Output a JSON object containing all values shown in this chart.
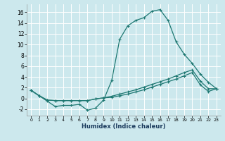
{
  "xlabel": "Humidex (Indice chaleur)",
  "bg_color": "#cce8ed",
  "grid_color": "#ffffff",
  "line_color": "#1e7872",
  "xlim": [
    -0.5,
    23.5
  ],
  "ylim": [
    -3.2,
    17.5
  ],
  "xticks": [
    0,
    1,
    2,
    3,
    4,
    5,
    6,
    7,
    8,
    9,
    10,
    11,
    12,
    13,
    14,
    15,
    16,
    17,
    18,
    19,
    20,
    21,
    22,
    23
  ],
  "yticks": [
    -2,
    0,
    2,
    4,
    6,
    8,
    10,
    12,
    14,
    16
  ],
  "line1_x": [
    0,
    1,
    2,
    3,
    4,
    5,
    6,
    7,
    8,
    9,
    10,
    11,
    12,
    13,
    14,
    15,
    16,
    17,
    18,
    19,
    20,
    21,
    22,
    23
  ],
  "line1_y": [
    1.5,
    0.5,
    -0.5,
    -1.5,
    -1.3,
    -1.3,
    -1.1,
    -2.2,
    -1.8,
    -0.3,
    3.3,
    11.0,
    13.5,
    14.5,
    15.0,
    16.2,
    16.5,
    14.5,
    10.5,
    8.2,
    6.5,
    4.5,
    3.0,
    1.8
  ],
  "line2_x": [
    0,
    1,
    2,
    3,
    4,
    5,
    6,
    7,
    8,
    9,
    10,
    11,
    12,
    13,
    14,
    15,
    16,
    17,
    18,
    19,
    20,
    21,
    22,
    23
  ],
  "line2_y": [
    1.5,
    0.5,
    -0.3,
    -0.4,
    -0.4,
    -0.4,
    -0.4,
    -0.4,
    -0.1,
    0.1,
    0.4,
    0.8,
    1.2,
    1.6,
    2.1,
    2.6,
    3.1,
    3.6,
    4.2,
    4.8,
    5.3,
    3.2,
    1.8,
    1.8
  ],
  "line3_x": [
    0,
    1,
    2,
    3,
    4,
    5,
    6,
    7,
    8,
    9,
    10,
    11,
    12,
    13,
    14,
    15,
    16,
    17,
    18,
    19,
    20,
    21,
    22,
    23
  ],
  "line3_y": [
    1.5,
    0.5,
    -0.3,
    -0.4,
    -0.4,
    -0.4,
    -0.4,
    -0.4,
    -0.1,
    0.1,
    0.2,
    0.5,
    0.8,
    1.2,
    1.6,
    2.1,
    2.6,
    3.1,
    3.6,
    4.2,
    4.8,
    2.5,
    1.3,
    1.8
  ]
}
